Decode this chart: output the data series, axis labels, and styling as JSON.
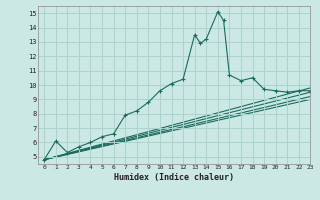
{
  "xlabel": "Humidex (Indice chaleur)",
  "bg_color": "#cce8e4",
  "grid_color": "#aad4cf",
  "line_color": "#1a6b5e",
  "xlim": [
    -0.5,
    23
  ],
  "ylim": [
    4.5,
    15.5
  ],
  "xticks": [
    0,
    1,
    2,
    3,
    4,
    5,
    6,
    7,
    8,
    9,
    10,
    11,
    12,
    13,
    14,
    15,
    16,
    17,
    18,
    19,
    20,
    21,
    22,
    23
  ],
  "yticks": [
    5,
    6,
    7,
    8,
    9,
    10,
    11,
    12,
    13,
    14,
    15
  ],
  "main_series": [
    [
      0,
      4.8
    ],
    [
      1,
      6.1
    ],
    [
      2,
      5.3
    ],
    [
      3,
      5.7
    ],
    [
      4,
      6.0
    ],
    [
      5,
      6.4
    ],
    [
      6,
      6.6
    ],
    [
      7,
      7.9
    ],
    [
      8,
      8.2
    ],
    [
      9,
      8.8
    ],
    [
      10,
      9.6
    ],
    [
      11,
      10.1
    ],
    [
      12,
      10.4
    ],
    [
      13,
      13.5
    ],
    [
      13.5,
      12.9
    ],
    [
      14,
      13.2
    ],
    [
      15,
      15.1
    ],
    [
      15.5,
      14.5
    ],
    [
      16,
      10.7
    ],
    [
      17,
      10.3
    ],
    [
      18,
      10.5
    ],
    [
      19,
      9.7
    ],
    [
      20,
      9.6
    ],
    [
      21,
      9.5
    ],
    [
      22,
      9.6
    ],
    [
      23,
      9.6
    ]
  ],
  "trend_lines": [
    [
      [
        0,
        4.8
      ],
      [
        23,
        9.8
      ]
    ],
    [
      [
        0,
        4.8
      ],
      [
        23,
        9.5
      ]
    ],
    [
      [
        0,
        4.8
      ],
      [
        23,
        9.2
      ]
    ],
    [
      [
        0,
        4.8
      ],
      [
        23,
        9.0
      ]
    ]
  ]
}
